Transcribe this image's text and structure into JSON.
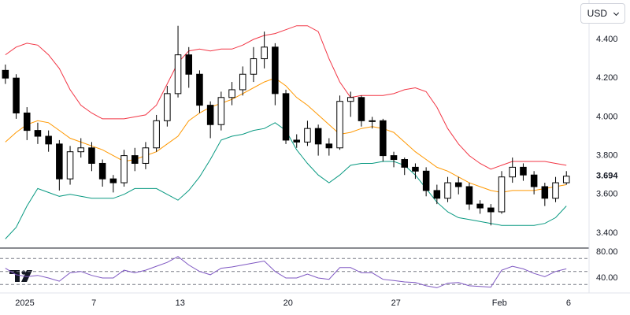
{
  "currency": "USD",
  "chart_data": [
    {
      "type": "candlestick",
      "open": [
        4.24,
        4.2,
        4.02,
        3.93,
        3.9,
        3.86,
        3.68,
        3.82,
        3.84,
        3.76,
        3.68,
        3.66,
        3.8,
        3.76,
        3.84,
        3.98,
        4.12,
        4.32,
        4.22,
        4.06,
        3.96,
        4.1,
        4.14,
        4.22,
        4.3,
        4.36,
        4.12,
        3.88,
        3.87,
        3.94,
        3.86,
        3.84,
        4.08,
        4.1,
        3.98,
        3.98,
        3.8,
        3.78,
        3.74,
        3.72,
        3.62,
        3.58,
        3.66,
        3.64,
        3.55,
        3.53,
        3.51,
        3.69,
        3.74,
        3.7,
        3.64,
        3.58,
        3.66
      ],
      "high": [
        4.27,
        4.22,
        4.05,
        3.97,
        3.93,
        3.88,
        3.85,
        3.89,
        3.87,
        3.78,
        3.7,
        3.83,
        3.84,
        3.87,
        4.01,
        4.16,
        4.47,
        4.36,
        4.24,
        4.08,
        4.13,
        4.18,
        4.26,
        4.36,
        4.44,
        4.38,
        4.14,
        3.91,
        3.98,
        3.96,
        3.89,
        4.11,
        4.13,
        4.11,
        4.0,
        3.99,
        3.82,
        3.79,
        3.76,
        3.74,
        3.65,
        3.69,
        3.69,
        3.66,
        3.57,
        3.55,
        3.72,
        3.79,
        3.76,
        3.72,
        3.66,
        3.69,
        3.72
      ],
      "low": [
        4.17,
        3.99,
        3.88,
        3.86,
        3.82,
        3.62,
        3.65,
        3.79,
        3.72,
        3.64,
        3.61,
        3.64,
        3.72,
        3.73,
        3.82,
        3.95,
        4.1,
        4.15,
        4.02,
        3.89,
        3.93,
        4.06,
        4.11,
        4.18,
        4.25,
        4.06,
        3.86,
        3.84,
        3.85,
        3.8,
        3.8,
        3.83,
        4.0,
        3.95,
        3.94,
        3.77,
        3.74,
        3.7,
        3.68,
        3.59,
        3.55,
        3.56,
        3.6,
        3.52,
        3.5,
        3.44,
        3.5,
        3.66,
        3.67,
        3.6,
        3.54,
        3.56,
        3.65
      ],
      "close": [
        4.2,
        4.02,
        3.93,
        3.9,
        3.86,
        3.68,
        3.82,
        3.84,
        3.76,
        3.68,
        3.66,
        3.8,
        3.76,
        3.84,
        3.98,
        4.12,
        4.32,
        4.22,
        4.06,
        3.96,
        4.1,
        4.14,
        4.22,
        4.3,
        4.36,
        4.12,
        3.88,
        3.87,
        3.94,
        3.86,
        3.84,
        4.08,
        4.1,
        3.98,
        3.98,
        3.8,
        3.78,
        3.74,
        3.72,
        3.62,
        3.58,
        3.66,
        3.64,
        3.55,
        3.53,
        3.51,
        3.69,
        3.74,
        3.7,
        3.64,
        3.58,
        3.66,
        3.694
      ],
      "up_color": "#ffffff",
      "down_color": "#000000",
      "bands": [
        {
          "color": "#f23645",
          "values": [
            4.32,
            4.36,
            4.38,
            4.37,
            4.32,
            4.25,
            4.14,
            4.06,
            4.02,
            3.99,
            3.99,
            3.99,
            4.0,
            4.01,
            4.06,
            4.17,
            4.28,
            4.34,
            4.35,
            4.34,
            4.35,
            4.35,
            4.37,
            4.4,
            4.42,
            4.43,
            4.45,
            4.47,
            4.47,
            4.44,
            4.3,
            4.18,
            4.1,
            4.11,
            4.11,
            4.11,
            4.12,
            4.14,
            4.15,
            4.13,
            4.05,
            3.94,
            3.86,
            3.8,
            3.76,
            3.73,
            3.75,
            3.77,
            3.77,
            3.77,
            3.77,
            3.76,
            3.75
          ]
        },
        {
          "color": "#ff9800",
          "values": [
            3.87,
            3.92,
            3.96,
            3.98,
            3.97,
            3.93,
            3.89,
            3.87,
            3.85,
            3.83,
            3.8,
            3.77,
            3.78,
            3.8,
            3.82,
            3.86,
            3.9,
            3.98,
            4.02,
            4.05,
            4.07,
            4.09,
            4.12,
            4.15,
            4.18,
            4.2,
            4.16,
            4.1,
            4.06,
            4.01,
            3.96,
            3.91,
            3.92,
            3.94,
            3.95,
            3.94,
            3.92,
            3.87,
            3.82,
            3.78,
            3.74,
            3.72,
            3.69,
            3.66,
            3.64,
            3.62,
            3.61,
            3.62,
            3.62,
            3.62,
            3.63,
            3.64,
            3.65
          ]
        },
        {
          "color": "#089981",
          "values": [
            3.37,
            3.43,
            3.54,
            3.63,
            3.61,
            3.59,
            3.6,
            3.59,
            3.58,
            3.58,
            3.58,
            3.6,
            3.63,
            3.63,
            3.63,
            3.6,
            3.57,
            3.62,
            3.69,
            3.78,
            3.88,
            3.9,
            3.91,
            3.93,
            3.94,
            3.97,
            3.93,
            3.83,
            3.76,
            3.7,
            3.66,
            3.7,
            3.75,
            3.76,
            3.76,
            3.77,
            3.77,
            3.75,
            3.7,
            3.63,
            3.56,
            3.51,
            3.48,
            3.47,
            3.46,
            3.45,
            3.44,
            3.44,
            3.44,
            3.44,
            3.45,
            3.48,
            3.54
          ]
        }
      ],
      "last_price": {
        "value": 3.694,
        "label": "3.694"
      },
      "xlim": [
        -0.5,
        54.1
      ],
      "xticks": [
        {
          "value": 1.8,
          "label": "2025"
        },
        {
          "value": 8.2,
          "label": "7"
        },
        {
          "value": 16.2,
          "label": "13"
        },
        {
          "value": 26.2,
          "label": "20"
        },
        {
          "value": 36.2,
          "label": "27"
        },
        {
          "value": 45.8,
          "label": "Feb"
        },
        {
          "value": 52.2,
          "label": "6"
        }
      ],
      "ylim": [
        3.323,
        4.603
      ],
      "yticks": [
        {
          "value": 3.4,
          "label": "3.400"
        },
        {
          "value": 3.6,
          "label": "3.600"
        },
        {
          "value": 3.8,
          "label": "3.800"
        },
        {
          "value": 4.0,
          "label": "4.000"
        },
        {
          "value": 4.2,
          "label": "4.200"
        },
        {
          "value": 4.4,
          "label": "4.400"
        }
      ],
      "grid": false
    },
    {
      "type": "line",
      "series": [
        {
          "color": "#7e57c2",
          "values": [
            55,
            45,
            42,
            44,
            40,
            35,
            48,
            50,
            44,
            40,
            40,
            52,
            48,
            52,
            58,
            64,
            73,
            60,
            50,
            45,
            55,
            57,
            60,
            63,
            66,
            50,
            40,
            40,
            46,
            40,
            38,
            56,
            56,
            48,
            48,
            38,
            36,
            34,
            33,
            28,
            25,
            32,
            33,
            28,
            27,
            26,
            52,
            58,
            54,
            47,
            42,
            50,
            54
          ]
        }
      ],
      "levels": [
        70,
        50,
        30
      ],
      "ylim": [
        17,
        86
      ],
      "yticks": [
        {
          "value": 40,
          "label": "40.00"
        },
        {
          "value": 80,
          "label": "80.00"
        }
      ]
    }
  ]
}
